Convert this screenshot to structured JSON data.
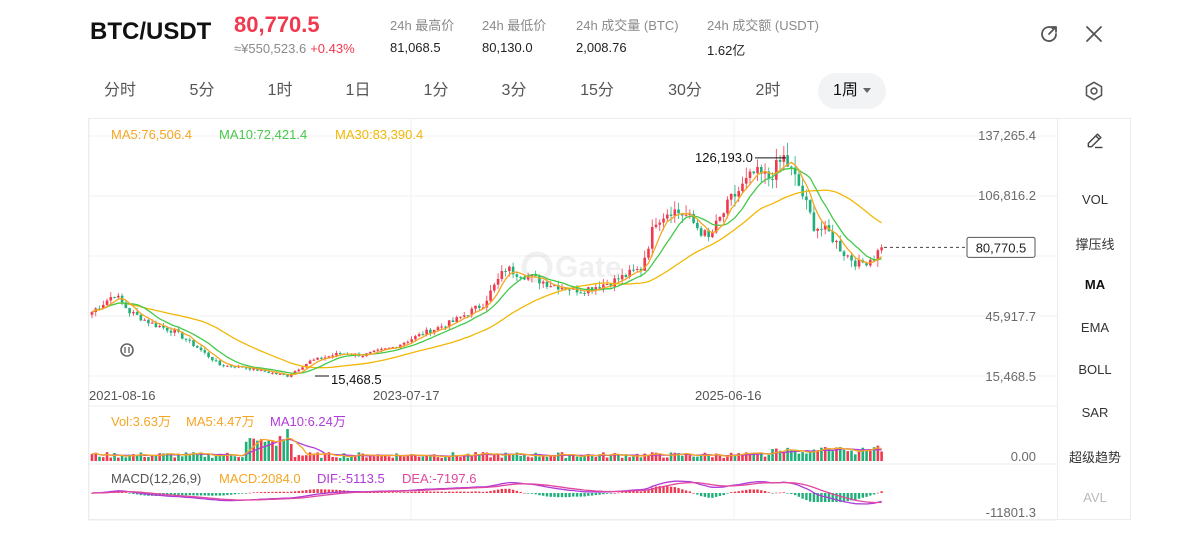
{
  "header": {
    "pair": "BTC/USDT",
    "price": "80,770.5",
    "cny_price": "≈¥550,523.6",
    "change": "+0.43%",
    "stats": [
      {
        "label": "24h 最高价",
        "value": "81,068.5"
      },
      {
        "label": "24h 最低价",
        "value": "80,130.0"
      },
      {
        "label": "24h 成交量 (BTC)",
        "value": "2,008.76"
      },
      {
        "label": "24h 成交额 (USDT)",
        "value": "1.62亿"
      }
    ],
    "price_color": "#f0384e"
  },
  "timeframes": [
    "分时",
    "5分",
    "1时",
    "1日",
    "1分",
    "3分",
    "15分",
    "30分",
    "2时",
    "1周"
  ],
  "active_timeframe": "1周",
  "side_panel": [
    "VOL",
    "撑压线",
    "MA",
    "EMA",
    "BOLL",
    "SAR",
    "超级趋势",
    "AVL"
  ],
  "chart_data": {
    "type": "candlestick",
    "interval": "1周",
    "ma_legend": {
      "ma5": "MA5:76,506.4",
      "ma10": "MA10:72,421.4",
      "ma30": "MA30:83,390.4"
    },
    "y_ticks": [
      "137,265.4",
      "106,816.2",
      "45,917.7",
      "15,468.5"
    ],
    "current_price_label": "80,770.5",
    "high_label": "126,193.0",
    "low_label": "15,468.5",
    "x_ticks": [
      "2021-08-16",
      "2023-07-17",
      "2025-06-16"
    ],
    "volume": {
      "vol": "Vol:3.63万",
      "ma5": "MA5:4.47万",
      "ma10": "MA10:6.24万",
      "axis": "0.00"
    },
    "macd": {
      "title": "MACD(12,26,9)",
      "macd": "MACD:2084.0",
      "dif": "DIF:-5113.5",
      "dea": "DEA:-7197.6",
      "axis": "-11801.3"
    },
    "ylim": [
      15468.5,
      137265.4
    ],
    "price_keypoints": [
      [
        0,
        48000
      ],
      [
        6,
        57000
      ],
      [
        10,
        48000
      ],
      [
        16,
        42000
      ],
      [
        22,
        38000
      ],
      [
        28,
        30000
      ],
      [
        34,
        21000
      ],
      [
        40,
        20000
      ],
      [
        48,
        17000
      ],
      [
        52,
        15468.5
      ],
      [
        58,
        23000
      ],
      [
        66,
        27000
      ],
      [
        72,
        26000
      ],
      [
        80,
        30000
      ],
      [
        88,
        37000
      ],
      [
        96,
        43000
      ],
      [
        104,
        52000
      ],
      [
        110,
        70000
      ],
      [
        116,
        66000
      ],
      [
        122,
        62000
      ],
      [
        130,
        59000
      ],
      [
        138,
        63000
      ],
      [
        146,
        70000
      ],
      [
        150,
        95000
      ],
      [
        154,
        100000
      ],
      [
        158,
        97000
      ],
      [
        164,
        85000
      ],
      [
        170,
        105000
      ],
      [
        176,
        118000
      ],
      [
        180,
        116000
      ],
      [
        184,
        126193
      ],
      [
        188,
        112000
      ],
      [
        192,
        92000
      ],
      [
        196,
        88000
      ],
      [
        200,
        78000
      ],
      [
        204,
        72000
      ],
      [
        208,
        76000
      ],
      [
        210,
        80770.5
      ]
    ],
    "colors": {
      "up": "#f0384e",
      "down": "#1fb07a",
      "ma5": "#f5a623",
      "ma10": "#46c94a",
      "ma30": "#f2b705",
      "vol_ma5": "#f5a623",
      "vol_ma10": "#b03bd8",
      "macd": "#f5a623",
      "dif": "#b03bd8",
      "dea": "#e0479e"
    }
  }
}
